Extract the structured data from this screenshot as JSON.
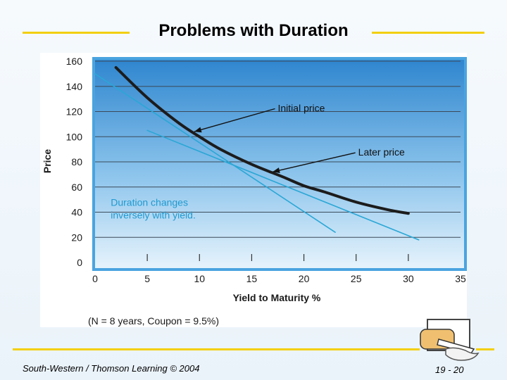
{
  "slide": {
    "title": "Problems with Duration",
    "footer_left": "South-Western / Thomson Learning © 2004",
    "page_number": "19 - 20",
    "accent_color": "#f3cf0f"
  },
  "chart_data": {
    "type": "line",
    "title": "",
    "xlabel": "Yield to Maturity %",
    "ylabel": "Price",
    "xlim": [
      0,
      35
    ],
    "ylim": [
      0,
      160
    ],
    "x_ticks": [
      0,
      5,
      10,
      15,
      20,
      25,
      30,
      35
    ],
    "y_ticks": [
      0,
      20,
      40,
      60,
      80,
      100,
      120,
      140,
      160
    ],
    "grid": true,
    "series": [
      {
        "name": "Bond price",
        "color": "#1c1c1c",
        "x": [
          2,
          5,
          8,
          10,
          12,
          15,
          18,
          20,
          22,
          25,
          28,
          30
        ],
        "y": [
          155,
          131,
          111,
          100,
          90,
          78,
          68,
          61,
          56,
          48,
          42,
          39
        ]
      },
      {
        "name": "Initial price tangent",
        "color": "#2aa7d6",
        "x": [
          0,
          23
        ],
        "y": [
          150,
          24
        ]
      },
      {
        "name": "Later price tangent",
        "color": "#2aa7d6",
        "x": [
          5,
          31
        ],
        "y": [
          105,
          18
        ]
      }
    ],
    "annotations": [
      {
        "text": "Initial price",
        "x": 17.5,
        "y": 120,
        "arrow_to_x": 9.5,
        "arrow_to_y": 104
      },
      {
        "text": "Later price",
        "x": 25.2,
        "y": 85,
        "arrow_to_x": 17,
        "arrow_to_y": 72
      },
      {
        "text": "Duration changes",
        "x": 1.5,
        "y": 45
      },
      {
        "text": "inversely with yield.",
        "x": 1.5,
        "y": 35
      }
    ],
    "note": "(N = 8 years, Coupon = 9.5%)"
  }
}
